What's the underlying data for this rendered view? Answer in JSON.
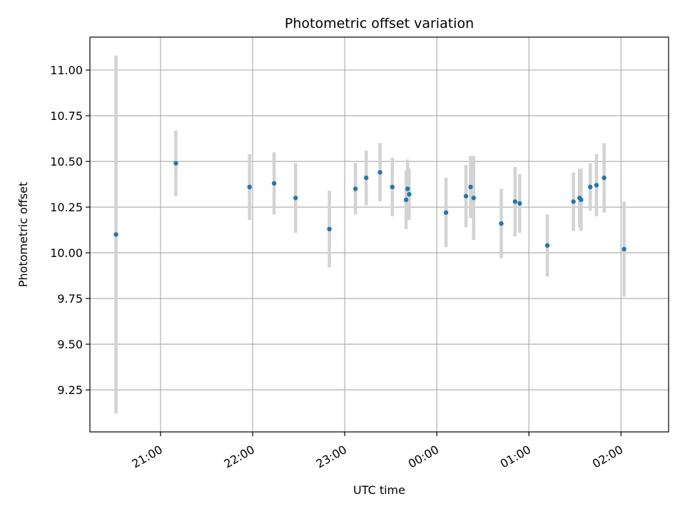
{
  "chart_data": {
    "type": "scatter",
    "title": "Photometric offset variation",
    "xlabel": "UTC time",
    "ylabel": "Photometric offset",
    "grid": true,
    "x_unit": "UTC time (HH:MM)",
    "xlim": [
      "20:14",
      "02:31"
    ],
    "ylim": [
      9.02,
      11.18
    ],
    "x_ticks": [
      "21:00",
      "22:00",
      "23:00",
      "00:00",
      "01:00",
      "02:00"
    ],
    "y_ticks": [
      "9.25",
      "9.50",
      "9.75",
      "10.00",
      "10.25",
      "10.50",
      "10.75",
      "11.00"
    ],
    "colors": {
      "point": "#1f77b4",
      "errorbar": "#d3d3d3",
      "grid": "#b0b0b0"
    },
    "points": [
      {
        "x": "20:31",
        "y": 10.1,
        "yerr": 0.98
      },
      {
        "x": "21:10",
        "y": 10.49,
        "yerr": 0.18
      },
      {
        "x": "21:58",
        "y": 10.36,
        "yerr": 0.18
      },
      {
        "x": "22:14",
        "y": 10.38,
        "yerr": 0.17
      },
      {
        "x": "22:28",
        "y": 10.3,
        "yerr": 0.19
      },
      {
        "x": "22:50",
        "y": 10.13,
        "yerr": 0.21
      },
      {
        "x": "23:07",
        "y": 10.35,
        "yerr": 0.14
      },
      {
        "x": "23:14",
        "y": 10.41,
        "yerr": 0.15
      },
      {
        "x": "23:23",
        "y": 10.44,
        "yerr": 0.16
      },
      {
        "x": "23:31",
        "y": 10.36,
        "yerr": 0.16
      },
      {
        "x": "23:40",
        "y": 10.29,
        "yerr": 0.16
      },
      {
        "x": "23:41",
        "y": 10.35,
        "yerr": 0.16
      },
      {
        "x": "23:42",
        "y": 10.32,
        "yerr": 0.14
      },
      {
        "x": "00:06",
        "y": 10.22,
        "yerr": 0.19
      },
      {
        "x": "00:19",
        "y": 10.31,
        "yerr": 0.17
      },
      {
        "x": "00:22",
        "y": 10.36,
        "yerr": 0.17
      },
      {
        "x": "00:24",
        "y": 10.3,
        "yerr": 0.23
      },
      {
        "x": "00:42",
        "y": 10.16,
        "yerr": 0.19
      },
      {
        "x": "00:51",
        "y": 10.28,
        "yerr": 0.19
      },
      {
        "x": "00:54",
        "y": 10.27,
        "yerr": 0.16
      },
      {
        "x": "01:12",
        "y": 10.04,
        "yerr": 0.17
      },
      {
        "x": "01:29",
        "y": 10.28,
        "yerr": 0.16
      },
      {
        "x": "01:33",
        "y": 10.3,
        "yerr": 0.16
      },
      {
        "x": "01:34",
        "y": 10.29,
        "yerr": 0.17
      },
      {
        "x": "01:40",
        "y": 10.36,
        "yerr": 0.13
      },
      {
        "x": "01:44",
        "y": 10.37,
        "yerr": 0.17
      },
      {
        "x": "01:49",
        "y": 10.41,
        "yerr": 0.19
      },
      {
        "x": "02:02",
        "y": 10.02,
        "yerr": 0.26
      }
    ]
  }
}
